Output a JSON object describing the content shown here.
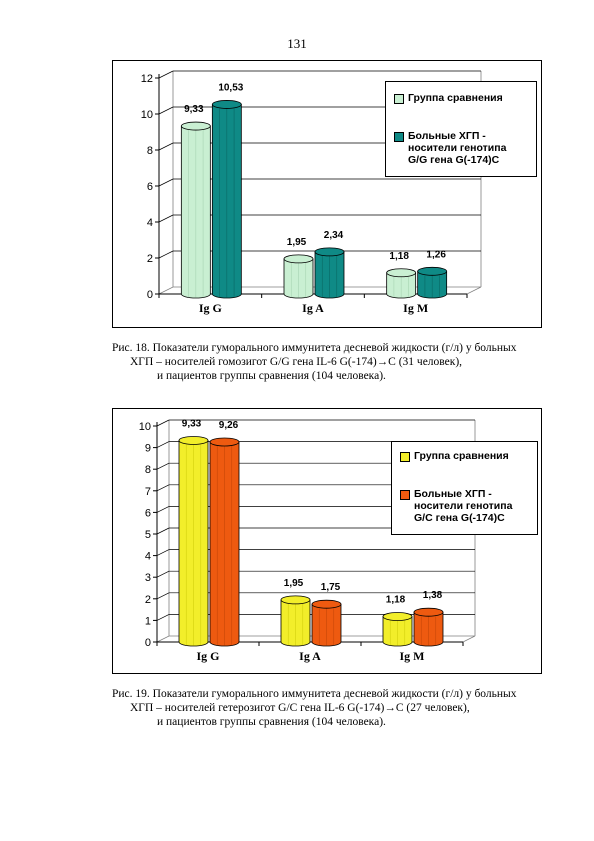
{
  "page": {
    "number": "131"
  },
  "chart_data": [
    {
      "type": "bar",
      "categories": [
        "Ig G",
        "Ig A",
        "Ig M"
      ],
      "series": [
        {
          "name": "Группа сравнения",
          "values": [
            9.33,
            1.95,
            1.18
          ],
          "labels": [
            "9,33",
            "1,95",
            "1,18"
          ],
          "color": "#c9efd2",
          "color_dark": "#9ac9a5"
        },
        {
          "name": "Больные ХГП - носители генотипа G/G гена G(-174)C",
          "legend_lines": [
            "Больные ХГП -",
            "носители генотипа",
            "G/G гена G(-174)C"
          ],
          "values": [
            10.53,
            2.34,
            1.26
          ],
          "labels": [
            "10,53",
            "2,34",
            "1,26"
          ],
          "color": "#0f8a86",
          "color_dark": "#065a57"
        }
      ],
      "yticks": [
        "0",
        "2",
        "4",
        "6",
        "8",
        "10",
        "12"
      ],
      "ylim": [
        0,
        12
      ],
      "grid": true,
      "legend_position": "top-right"
    },
    {
      "type": "bar",
      "categories": [
        "Ig G",
        "Ig A",
        "Ig M"
      ],
      "series": [
        {
          "name": "Группа сравнения",
          "values": [
            9.33,
            1.95,
            1.18
          ],
          "labels": [
            "9,33",
            "1,95",
            "1,18"
          ],
          "color": "#f2ee2a",
          "color_dark": "#c7c400"
        },
        {
          "name": "Больные ХГП - носители генотипа G/C гена G(-174)C",
          "legend_lines": [
            "Больные ХГП -",
            "носители генотипа",
            "G/C гена G(-174)C"
          ],
          "values": [
            9.26,
            1.75,
            1.38
          ],
          "labels": [
            "9,26",
            "1,75",
            "1,38"
          ],
          "color": "#ee5a10",
          "color_dark": "#b83e05"
        }
      ],
      "yticks": [
        "0",
        "1",
        "2",
        "3",
        "4",
        "5",
        "6",
        "7",
        "8",
        "9",
        "10"
      ],
      "ylim": [
        0,
        10
      ],
      "grid": true,
      "legend_position": "top-right"
    }
  ],
  "captions": [
    {
      "line1": "Рис. 18. Показатели гуморального иммунитета десневой жидкости (г/л) у больных",
      "line2": "ХГП –  носителей гомозигот G/G гена IL-6 G(-174)→C (31 человек),",
      "line3": "и пациентов группы сравнения (104 человека)."
    },
    {
      "line1": "Рис. 19. Показатели гуморального иммунитета десневой жидкости (г/л) у больных",
      "line2": "ХГП –  носителей гетерозигот G/C гена IL-6 G(-174)→C (27 человек),",
      "line3": "и пациентов группы сравнения (104 человека)."
    }
  ]
}
